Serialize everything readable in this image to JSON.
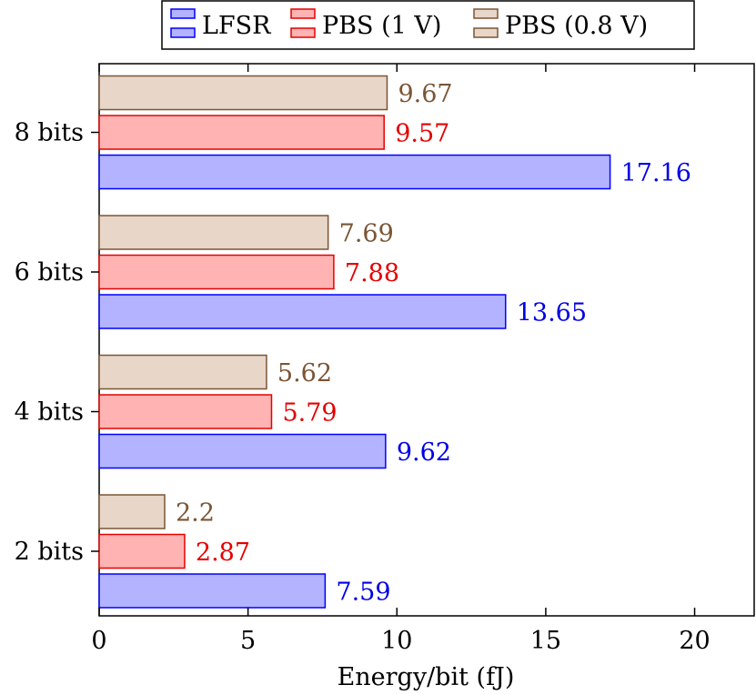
{
  "chart_data": {
    "type": "bar",
    "orientation": "horizontal",
    "categories": [
      "2 bits",
      "4 bits",
      "6 bits",
      "8 bits"
    ],
    "series": [
      {
        "name": "LFSR",
        "values": [
          7.59,
          9.62,
          13.65,
          17.16
        ],
        "fill": "#b3b3ff",
        "stroke": "#0000ff",
        "label_color": "#0000e6"
      },
      {
        "name": "PBS (1 V)",
        "values": [
          2.87,
          5.79,
          7.88,
          9.57
        ],
        "fill": "#ffb3b3",
        "stroke": "#e60000",
        "label_color": "#e60000"
      },
      {
        "name": "PBS (0.8 V)",
        "values": [
          2.2,
          5.62,
          7.69,
          9.67
        ],
        "fill": "#e8d6c8",
        "stroke": "#7a5535",
        "label_color": "#7a5535"
      }
    ],
    "xlabel": "Energy/bit (fJ)",
    "ylabel": "",
    "xlim": [
      0,
      22
    ],
    "xticks": [
      0,
      5,
      10,
      15,
      20
    ],
    "grid": false,
    "legend_position": "top-center"
  }
}
